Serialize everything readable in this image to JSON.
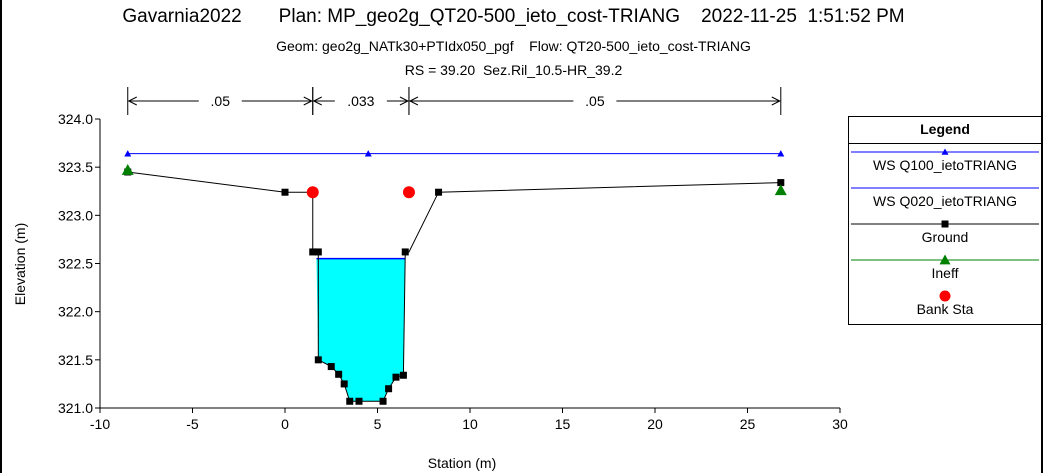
{
  "window": {
    "title_line1": "Gavarnia2022       Plan: MP_geo2g_QT20-500_ieto_cost-TRIANG    2022-11-25  1:51:52 PM",
    "title_line2": "Geom: geo2g_NATk30+PTIdx050_pgf    Flow: QT20-500_ieto_cost-TRIANG",
    "title_line3": "RS = 39.20  Sez.Ril_10.5-HR_39.2"
  },
  "chart_data": {
    "type": "line",
    "xlabel": "Station (m)",
    "ylabel": "Elevation (m)",
    "xlim": [
      -10,
      30
    ],
    "ylim": [
      321.0,
      324.0
    ],
    "xticks": [
      "-10",
      "-5",
      "0",
      "5",
      "10",
      "15",
      "20",
      "25",
      "30"
    ],
    "yticks": [
      "321.0",
      "321.5",
      "322.0",
      "322.5",
      "323.0",
      "323.5",
      "324.0"
    ],
    "grid": false,
    "legend_position": "right",
    "mannings_n": [
      {
        "label": ".05",
        "from": -8.5,
        "to": 1.5
      },
      {
        "label": ".033",
        "from": 1.5,
        "to": 6.7
      },
      {
        "label": ".05",
        "from": 6.7,
        "to": 26.8
      }
    ],
    "series": [
      {
        "name": "WS Q100_ietoTRIANG",
        "color": "#0000ff",
        "marker": "triangle",
        "x": [
          -8.5,
          4.5,
          26.8
        ],
        "y": [
          323.64,
          323.64,
          323.64
        ]
      },
      {
        "name": "WS Q020_ietoTRIANG",
        "color": "#0000ff",
        "marker": "none",
        "x": [
          1.7,
          6.5
        ],
        "y": [
          322.55,
          322.55
        ]
      },
      {
        "name": "Ground",
        "color": "#000000",
        "marker": "square",
        "x": [
          -8.5,
          0.0,
          1.5,
          1.5,
          1.8,
          1.8,
          2.5,
          2.9,
          3.2,
          3.5,
          4.0,
          5.3,
          5.6,
          6.0,
          6.4,
          6.5,
          6.7,
          8.3,
          26.8
        ],
        "y": [
          323.45,
          323.24,
          323.24,
          322.62,
          322.62,
          321.5,
          321.43,
          321.35,
          321.25,
          321.07,
          321.07,
          321.07,
          321.2,
          321.32,
          321.34,
          322.62,
          322.62,
          323.24,
          323.34
        ]
      },
      {
        "name": "Ineff",
        "color": "#008000",
        "marker": "triangle",
        "x": [
          -8.5,
          26.8
        ],
        "y": [
          323.47,
          323.26
        ]
      },
      {
        "name": "Bank Sta",
        "color": "#ff0000",
        "marker": "circle",
        "x": [
          1.5,
          6.7
        ],
        "y": [
          323.24,
          323.24
        ]
      }
    ],
    "legend": {
      "title": "Legend",
      "entries": [
        "WS Q100_ietoTRIANG",
        "WS Q020_ietoTRIANG",
        "Ground",
        "Ineff",
        "Bank Sta"
      ]
    },
    "fill_color": "#00ffff"
  }
}
